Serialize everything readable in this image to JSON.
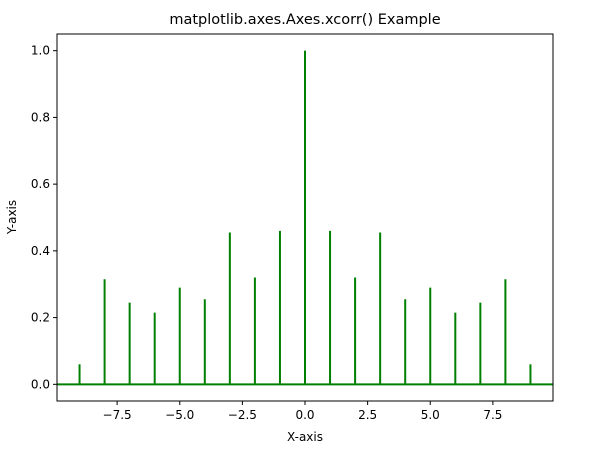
{
  "chart_data": {
    "type": "stem",
    "title": "matplotlib.axes.Axes.xcorr() Example",
    "xlabel": "X-axis",
    "ylabel": "Y-axis",
    "xlim": [
      -9.9,
      9.9
    ],
    "ylim": [
      -0.05,
      1.05
    ],
    "grid": false,
    "legend": "none",
    "x_ticks": [
      -7.5,
      -5.0,
      -2.5,
      0.0,
      2.5,
      5.0,
      7.5
    ],
    "x_tick_labels": [
      "−7.5",
      "−5.0",
      "−2.5",
      "0.0",
      "2.5",
      "5.0",
      "7.5"
    ],
    "y_ticks": [
      0.0,
      0.2,
      0.4,
      0.6,
      0.8,
      1.0
    ],
    "y_tick_labels": [
      "0.0",
      "0.2",
      "0.4",
      "0.6",
      "0.8",
      "1.0"
    ],
    "colors": {
      "stems": "#008000",
      "baseline": "#008000"
    },
    "series": [
      {
        "x": [
          -9,
          -8,
          -7,
          -6,
          -5,
          -4,
          -3,
          -2,
          -1,
          0,
          1,
          2,
          3,
          4,
          5,
          6,
          7,
          8,
          9
        ],
        "values": [
          0.06,
          0.315,
          0.245,
          0.215,
          0.29,
          0.255,
          0.455,
          0.32,
          0.46,
          1.0,
          0.46,
          0.32,
          0.455,
          0.255,
          0.29,
          0.215,
          0.245,
          0.315,
          0.06
        ]
      }
    ]
  }
}
